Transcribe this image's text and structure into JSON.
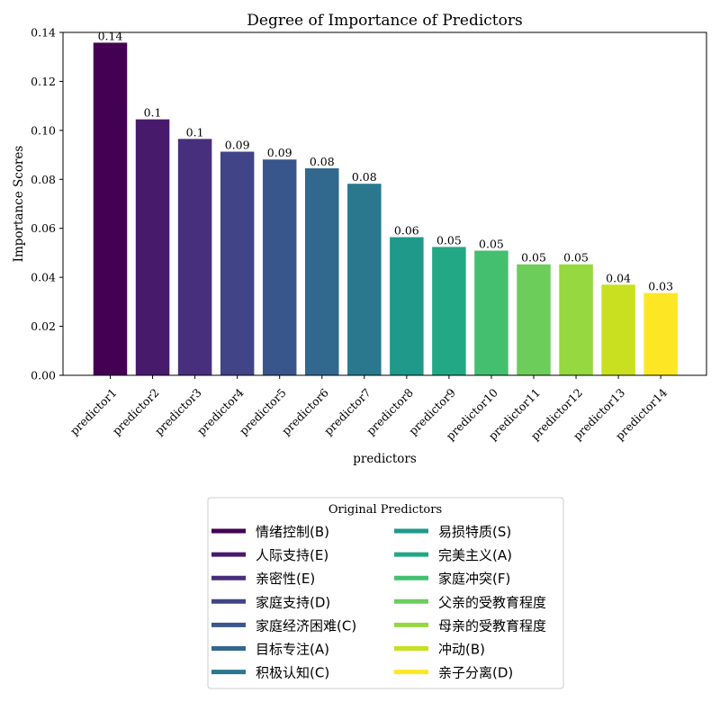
{
  "chart_data": {
    "type": "bar",
    "title": "Degree of Importance of Predictors",
    "xlabel": "predictors",
    "ylabel": "Importance Scores",
    "ylim": [
      0,
      0.14
    ],
    "yticks": [
      "0.00",
      "0.02",
      "0.04",
      "0.06",
      "0.08",
      "0.10",
      "0.12",
      "0.14"
    ],
    "grid": false,
    "categories": [
      "predictor1",
      "predictor2",
      "predictor3",
      "predictor4",
      "predictor5",
      "predictor6",
      "predictor7",
      "predictor8",
      "predictor9",
      "predictor10",
      "predictor11",
      "predictor12",
      "predictor13",
      "predictor14"
    ],
    "values": [
      0.1358,
      0.1045,
      0.0965,
      0.0913,
      0.0881,
      0.0845,
      0.0782,
      0.0564,
      0.0524,
      0.0509,
      0.0453,
      0.0453,
      0.037,
      0.0336
    ],
    "data_labels": [
      "0.14",
      "0.1",
      "0.1",
      "0.09",
      "0.09",
      "0.08",
      "0.08",
      "0.06",
      "0.05",
      "0.05",
      "0.05",
      "0.05",
      "0.04",
      "0.03"
    ],
    "colors": [
      "#440154",
      "#481a6c",
      "#472f7d",
      "#414487",
      "#39568c",
      "#31688e",
      "#2a788e",
      "#1f9a8a",
      "#22a884",
      "#44bf70",
      "#6ccd5a",
      "#95d840",
      "#c8e020",
      "#fde725"
    ],
    "legend": {
      "title": "Original Predictors",
      "placement": "bottom-center",
      "entries": [
        "情绪控制(B)",
        "人际支持(E)",
        "亲密性(E)",
        "家庭支持(D)",
        "家庭经济困难(C)",
        "目标专注(A)",
        "积极认知(C)",
        "易损特质(S)",
        "完美主义(A)",
        "家庭冲突(F)",
        "父亲的受教育程度",
        "母亲的受教育程度",
        "冲动(B)",
        "亲子分离(D)"
      ]
    }
  }
}
